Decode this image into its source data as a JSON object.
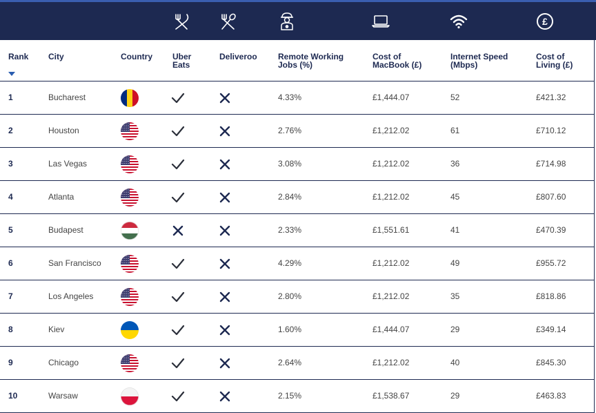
{
  "colors": {
    "navy": "#1d2951",
    "accent": "#3a5eb0"
  },
  "header_icons": [
    "fork-knife-icon",
    "fork-spoon-icon",
    "remote-worker-icon",
    "laptop-icon",
    "wifi-icon",
    "pound-icon"
  ],
  "columns": {
    "rank": "Rank",
    "city": "City",
    "country": "Country",
    "uber_l1": "Uber",
    "uber_l2": "Eats",
    "deliveroo": "Deliveroo",
    "remote_l1": "Remote Working",
    "remote_l2": "Jobs (%)",
    "mac_l1": "Cost of",
    "mac_l2": "MacBook (£)",
    "speed_l1": "Internet Speed",
    "speed_l2": "(Mbps)",
    "col_l1": "Cost of",
    "col_l2": "Living (£)"
  },
  "rows": [
    {
      "rank": "1",
      "city": "Bucharest",
      "flag": "romania-flag-icon",
      "uber": true,
      "deliveroo": false,
      "remote": "4.33%",
      "mac": "£1,444.07",
      "speed": "52",
      "col": "£421.32"
    },
    {
      "rank": "2",
      "city": "Houston",
      "flag": "usa-flag-icon",
      "uber": true,
      "deliveroo": false,
      "remote": "2.76%",
      "mac": "£1,212.02",
      "speed": "61",
      "col": "£710.12"
    },
    {
      "rank": "3",
      "city": "Las Vegas",
      "flag": "usa-flag-icon",
      "uber": true,
      "deliveroo": false,
      "remote": "3.08%",
      "mac": "£1,212.02",
      "speed": "36",
      "col": "£714.98"
    },
    {
      "rank": "4",
      "city": "Atlanta",
      "flag": "usa-flag-icon",
      "uber": true,
      "deliveroo": false,
      "remote": "2.84%",
      "mac": "£1,212.02",
      "speed": "45",
      "col": "£807.60"
    },
    {
      "rank": "5",
      "city": "Budapest",
      "flag": "hungary-flag-icon",
      "uber": false,
      "deliveroo": false,
      "remote": "2.33%",
      "mac": "£1,551.61",
      "speed": "41",
      "col": "£470.39"
    },
    {
      "rank": "6",
      "city": "San Francisco",
      "flag": "usa-flag-icon",
      "uber": true,
      "deliveroo": false,
      "remote": "4.29%",
      "mac": "£1,212.02",
      "speed": "49",
      "col": "£955.72"
    },
    {
      "rank": "7",
      "city": "Los Angeles",
      "flag": "usa-flag-icon",
      "uber": true,
      "deliveroo": false,
      "remote": "2.80%",
      "mac": "£1,212.02",
      "speed": "35",
      "col": "£818.86"
    },
    {
      "rank": "8",
      "city": "Kiev",
      "flag": "ukraine-flag-icon",
      "uber": true,
      "deliveroo": false,
      "remote": "1.60%",
      "mac": "£1,444.07",
      "speed": "29",
      "col": "£349.14"
    },
    {
      "rank": "9",
      "city": "Chicago",
      "flag": "usa-flag-icon",
      "uber": true,
      "deliveroo": false,
      "remote": "2.64%",
      "mac": "£1,212.02",
      "speed": "40",
      "col": "£845.30"
    },
    {
      "rank": "10",
      "city": "Warsaw",
      "flag": "poland-flag-icon",
      "uber": true,
      "deliveroo": false,
      "remote": "2.15%",
      "mac": "£1,538.67",
      "speed": "29",
      "col": "£463.83"
    }
  ]
}
